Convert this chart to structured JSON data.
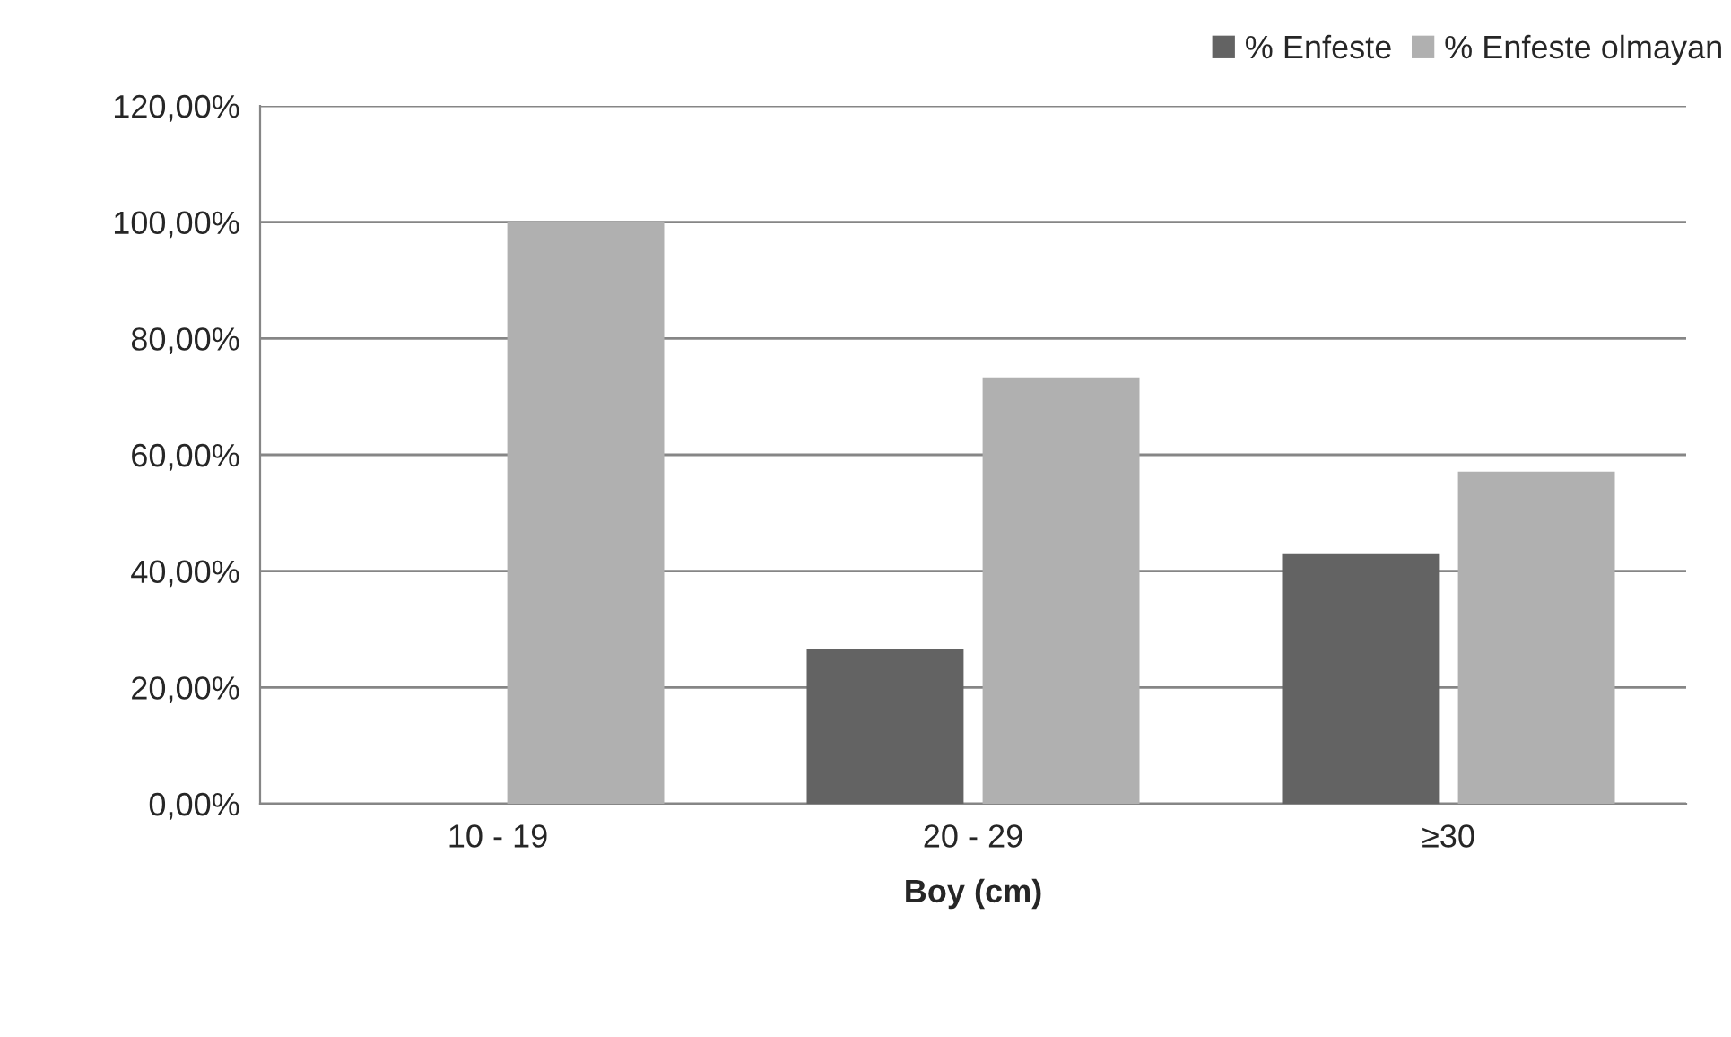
{
  "chart_data": {
    "type": "bar",
    "xlabel": "Boy (cm)",
    "categories": [
      "10 - 19",
      "20 - 29",
      "≥30"
    ],
    "series": [
      {
        "name": "% Enfeste",
        "color": "#636363",
        "values": [
          0,
          26.7,
          42.9
        ]
      },
      {
        "name": "% Enfeste olmayan",
        "color": "#b0b0b0",
        "values": [
          100,
          73.3,
          57.1
        ]
      }
    ],
    "ylim": [
      0,
      120
    ],
    "yticks": [
      {
        "value": 0,
        "label": "0,00%"
      },
      {
        "value": 20,
        "label": "20,00%"
      },
      {
        "value": 40,
        "label": "40,00%"
      },
      {
        "value": 60,
        "label": "60,00%"
      },
      {
        "value": 80,
        "label": "80,00%"
      },
      {
        "value": 100,
        "label": "100,00%"
      },
      {
        "value": 120,
        "label": "120,00%"
      }
    ],
    "grid": "y",
    "legend": "top right"
  }
}
